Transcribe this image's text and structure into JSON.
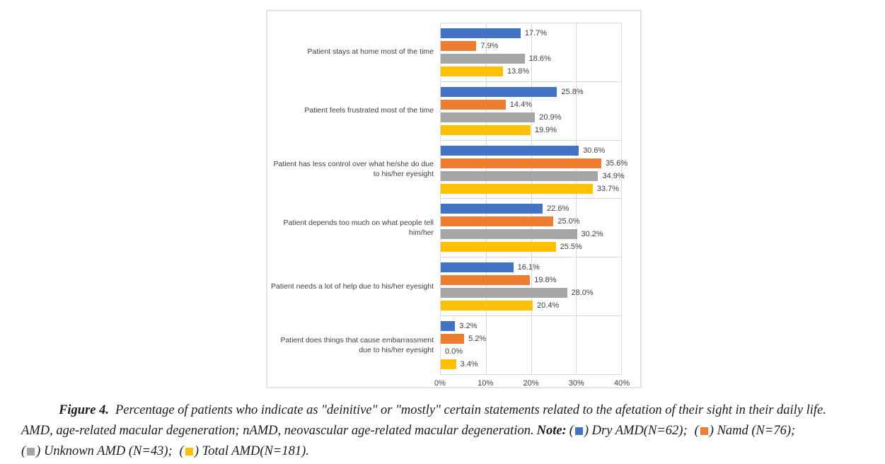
{
  "chart_data": {
    "type": "bar",
    "orientation": "horizontal",
    "title": "",
    "xlabel": "",
    "ylabel": "",
    "xlim": [
      0,
      40
    ],
    "x_ticks": [
      "0%",
      "10%",
      "20%",
      "30%",
      "40%"
    ],
    "grid": true,
    "legend_position": "caption-below",
    "value_label_format": "one-decimal-percent",
    "categories": [
      "Patient stays at home most of the time",
      "Patient feels frustrated most of the time",
      "Patient has less control over what he/she do due to his/her eyesight",
      "Patient depends too much on what people tell him/her",
      "Patient needs a lot of help due to his/her eyesight",
      "Patient does things that cause embarrassment due to his/her eyesight"
    ],
    "series": [
      {
        "name": "Dry AMD (N=62)",
        "color": "#4472C4",
        "values": [
          17.7,
          25.8,
          30.6,
          22.6,
          16.1,
          3.2
        ]
      },
      {
        "name": "nAMD (N=76)",
        "color": "#ED7D31",
        "values": [
          7.9,
          14.4,
          35.6,
          25.0,
          19.8,
          5.2
        ]
      },
      {
        "name": "Unknown AMD (N=43)",
        "color": "#A5A5A5",
        "values": [
          18.6,
          20.9,
          34.9,
          30.2,
          28.0,
          0.0
        ]
      },
      {
        "name": "Total AMD (N=181)",
        "color": "#FFC000",
        "values": [
          13.8,
          19.9,
          33.7,
          25.5,
          20.4,
          3.4
        ]
      }
    ],
    "colors": {
      "grid": "#d9d9d9",
      "axis_text": "#404040",
      "panel_border": "#e4e4e4"
    }
  },
  "caption": {
    "figure_label": "Figure 4.",
    "sentence1": "Percentage of patients who indicate as \"deinitive\" or \"mostly\" certain statements related to the afetation of their sight in their daily life.",
    "sentence2": "AMD, age-related macular degeneration; nAMD, neovascular age-related macular degeneration.",
    "note_label": "Note:",
    "legend": [
      {
        "color": "#4472C4",
        "label": "Dry AMD(N=62);"
      },
      {
        "color": "#ED7D31",
        "label": "Namd (N=76);"
      },
      {
        "color": "#A5A5A5",
        "label": "Unknown AMD (N=43);"
      },
      {
        "color": "#FFC000",
        "label": "Total AMD(N=181)."
      }
    ]
  }
}
